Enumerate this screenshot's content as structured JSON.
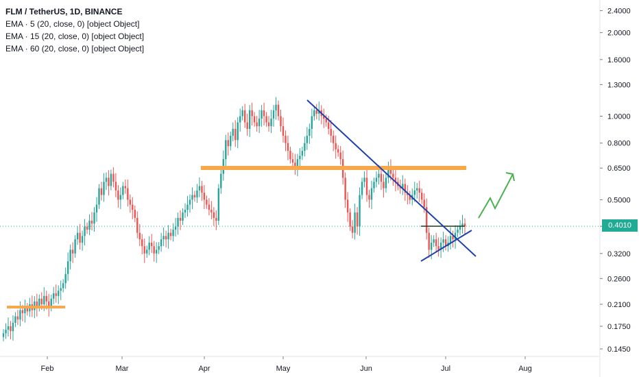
{
  "legend": {
    "title": "FLM / TetherUS, 1D, BINANCE",
    "lines": [
      "EMA · 5 (20, close, 0) [object Object]",
      "EMA · 15 (20, close, 0) [object Object]",
      "EMA · 60 (20, close, 0) [object Object]"
    ]
  },
  "current_price": "0.4010",
  "colors": {
    "up": "#26a69a",
    "down": "#ef5350",
    "trendline": "#1e40af",
    "resistance": "#f6a84a",
    "projection": "#4caf50",
    "price_line": "#22ab94",
    "axis": "#131722"
  },
  "chart_data": {
    "type": "candlestick",
    "symbol": "FLM / TetherUS",
    "interval": "1D",
    "exchange": "BINANCE",
    "y_scale": "log",
    "y_ticks": [
      "2.4000",
      "2.0000",
      "1.6000",
      "1.3000",
      "1.0000",
      "0.8000",
      "0.6500",
      "0.5000",
      "0.4010",
      "0.3200",
      "0.2600",
      "0.2100",
      "0.1750",
      "0.1450"
    ],
    "x_ticks": [
      "Feb",
      "Mar",
      "Apr",
      "May",
      "Jun",
      "Jul",
      "Aug"
    ],
    "ylim": [
      0.135,
      2.7
    ],
    "closes": [
      0.165,
      0.17,
      0.175,
      0.168,
      0.18,
      0.19,
      0.185,
      0.2,
      0.195,
      0.205,
      0.198,
      0.21,
      0.2,
      0.215,
      0.205,
      0.22,
      0.21,
      0.225,
      0.215,
      0.205,
      0.22,
      0.23,
      0.225,
      0.235,
      0.24,
      0.25,
      0.27,
      0.3,
      0.33,
      0.32,
      0.36,
      0.38,
      0.35,
      0.37,
      0.4,
      0.39,
      0.42,
      0.41,
      0.45,
      0.48,
      0.55,
      0.52,
      0.58,
      0.6,
      0.56,
      0.62,
      0.58,
      0.54,
      0.5,
      0.52,
      0.56,
      0.55,
      0.5,
      0.48,
      0.46,
      0.43,
      0.38,
      0.36,
      0.34,
      0.32,
      0.33,
      0.35,
      0.34,
      0.32,
      0.33,
      0.34,
      0.36,
      0.37,
      0.36,
      0.38,
      0.37,
      0.39,
      0.4,
      0.43,
      0.42,
      0.45,
      0.46,
      0.48,
      0.5,
      0.52,
      0.51,
      0.54,
      0.56,
      0.53,
      0.5,
      0.48,
      0.46,
      0.45,
      0.43,
      0.42,
      0.55,
      0.62,
      0.7,
      0.82,
      0.78,
      0.85,
      0.9,
      0.82,
      0.95,
      1.0,
      1.05,
      0.95,
      0.9,
      1.05,
      1.0,
      0.95,
      0.92,
      0.98,
      1.05,
      1.0,
      0.95,
      0.92,
      0.98,
      1.05,
      1.1,
      1.0,
      0.92,
      0.85,
      0.8,
      0.75,
      0.7,
      0.68,
      0.65,
      0.7,
      0.72,
      0.75,
      0.8,
      0.85,
      0.9,
      1.0,
      1.05,
      1.02,
      1.05,
      1.0,
      0.98,
      0.95,
      0.9,
      0.85,
      0.8,
      0.76,
      0.74,
      0.7,
      0.6,
      0.5,
      0.45,
      0.4,
      0.38,
      0.45,
      0.4,
      0.52,
      0.58,
      0.6,
      0.52,
      0.5,
      0.55,
      0.58,
      0.6,
      0.62,
      0.58,
      0.55,
      0.6,
      0.65,
      0.62,
      0.6,
      0.58,
      0.56,
      0.55,
      0.57,
      0.53,
      0.52,
      0.5,
      0.52,
      0.54,
      0.55,
      0.53,
      0.5,
      0.47,
      0.38,
      0.33,
      0.35,
      0.36,
      0.34,
      0.33,
      0.35,
      0.36,
      0.34,
      0.35,
      0.37,
      0.36,
      0.38,
      0.39,
      0.4,
      0.41,
      0.401
    ]
  },
  "time_axis": {
    "months": [
      "Feb",
      "Mar",
      "Apr",
      "May",
      "Jun",
      "Jul",
      "Aug"
    ]
  }
}
